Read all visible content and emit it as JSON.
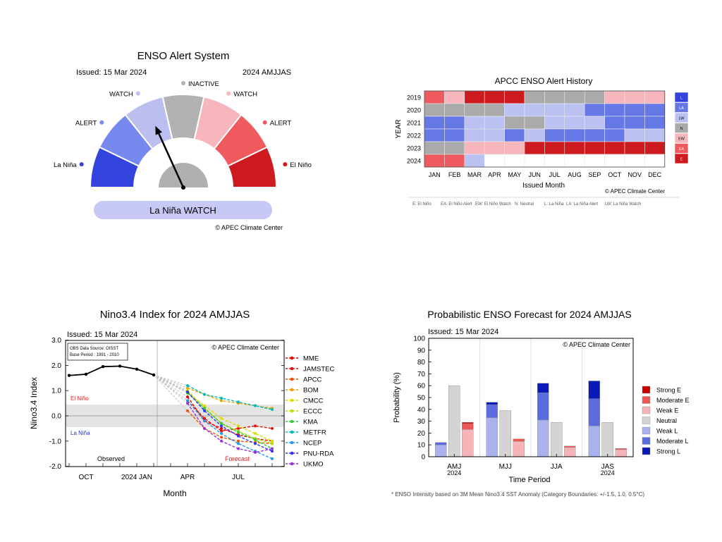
{
  "colors": {
    "la_nina": "#3344dd",
    "alert_l": "#7788ee",
    "watch_l": "#bbbff0",
    "inactive": "#b2b2b2",
    "watch_e": "#f7b6bc",
    "alert_e": "#ee5a5e",
    "el_nino": "#cc1a1f",
    "strong_e": "#c80000",
    "moderate_e": "#ee5555",
    "weak_e": "#f6b4b8",
    "neutral": "#d4d4d4",
    "weak_l": "#aab2ee",
    "moderate_l": "#5a6ce0",
    "strong_l": "#0a1ab8",
    "banner": "#c8c8f4"
  },
  "gauge": {
    "title": "ENSO Alert System",
    "issued": "Issued: 15 Mar 2024",
    "season": "2024 AMJJAS",
    "status": "La Niña WATCH",
    "credit": "© APEC Climate Center",
    "labels": [
      "La Niña",
      "ALERT",
      "WATCH",
      "INACTIVE",
      "WATCH",
      "ALERT",
      "El Niño"
    ],
    "needle_sector": 2
  },
  "history": {
    "title": "APCC ENSO Alert History",
    "ylabel": "YEAR",
    "xlabel": "Issued Month",
    "credit": "© APEC Climate Center",
    "years": [
      "2019",
      "2020",
      "2021",
      "2022",
      "2023",
      "2024"
    ],
    "months": [
      "JAN",
      "FEB",
      "MAR",
      "APR",
      "MAY",
      "JUN",
      "JUL",
      "AUG",
      "SEP",
      "OCT",
      "NOV",
      "DEC"
    ],
    "grid": [
      [
        "EA",
        "EW",
        "E",
        "E",
        "E",
        "N",
        "N",
        "N",
        "N",
        "EW",
        "EW",
        "EW"
      ],
      [
        "N",
        "N",
        "N",
        "N",
        "LW",
        "LW",
        "LW",
        "LW",
        "LA",
        "LA",
        "LA",
        "LA"
      ],
      [
        "LA",
        "LA",
        "LW",
        "LW",
        "N",
        "N",
        "LW",
        "LW",
        "LW",
        "LA",
        "LA",
        "LA"
      ],
      [
        "LA",
        "LA",
        "LW",
        "LW",
        "LA",
        "LW",
        "LA",
        "LA",
        "LA",
        "LA",
        "LW",
        "LW"
      ],
      [
        "N",
        "N",
        "EW",
        "EW",
        "EW",
        "E",
        "E",
        "E",
        "E",
        "E",
        "E",
        "E"
      ],
      [
        "EA",
        "EA",
        "LW",
        "",
        "",
        "",
        "",
        "",
        "",
        "",
        "",
        ""
      ]
    ],
    "legend": [
      {
        "code": "L",
        "color": "#3344dd"
      },
      {
        "code": "LA",
        "color": "#6677e6"
      },
      {
        "code": "LW",
        "color": "#bbc2f2"
      },
      {
        "code": "N",
        "color": "#aaaaaa"
      },
      {
        "code": "EW",
        "color": "#f7b6bc"
      },
      {
        "code": "EA",
        "color": "#ee5a5e"
      },
      {
        "code": "E",
        "color": "#cc1a1f"
      }
    ],
    "footnote": [
      "E: El Niño",
      "EA: El Niño Alert",
      "EW: El Niño Watch",
      "N: Neutral",
      "L: La Niña",
      "LA: La Niña Alert",
      "LW: La Niña Watch"
    ]
  },
  "nino": {
    "title": "Nino3.4 Index for 2024 AMJJAS",
    "issued": "Issued: 15 Mar 2024",
    "obs_note": [
      "OBS Data Source: OISST",
      "Base Period : 1991 - 2010"
    ],
    "credit": "© APEC Climate Center",
    "ylabel": "Nino3.4 Index",
    "xlabel": "Month",
    "el_nino_label": "El Niño",
    "la_nina_label": "La Niña",
    "observed_label": "Observed",
    "forecast_label": "Forecast",
    "yticks": [
      "3.0",
      "2.0",
      "1.0",
      "0.0",
      "-1.0",
      "-2.0"
    ],
    "xticks": [
      {
        "pos": 1,
        "label": "OCT"
      },
      {
        "pos": 4,
        "label": "2024 JAN"
      },
      {
        "pos": 7,
        "label": "APR"
      },
      {
        "pos": 10,
        "label": "JUL"
      }
    ]
  },
  "chart_data": [
    {
      "type": "line",
      "title": "Nino3.4 Index for 2024 AMJJAS",
      "xlabel": "Month",
      "ylabel": "Nino3.4 Index",
      "ylim": [
        -2.0,
        3.0
      ],
      "observed": {
        "x": [
          0,
          1,
          2,
          3,
          4,
          5
        ],
        "y": [
          1.6,
          1.65,
          1.95,
          1.97,
          1.85,
          1.62
        ]
      },
      "series": [
        {
          "name": "MME",
          "color": "#e60000",
          "values": [
            0.75,
            -0.2,
            -0.5,
            -0.75,
            -0.9,
            -1.0
          ]
        },
        {
          "name": "JAMSTEC",
          "color": "#dd1111",
          "values": [
            0.6,
            -0.1,
            -0.6,
            -0.5,
            -0.4,
            -0.5
          ]
        },
        {
          "name": "APCC",
          "color": "#ee5500",
          "values": [
            0.2,
            -0.5,
            -0.85,
            -1.0,
            -1.05,
            -1.1
          ]
        },
        {
          "name": "BOM",
          "color": "#f0a000",
          "values": [
            1.1,
            0.85,
            0.6,
            0.5,
            0.4,
            0.3
          ]
        },
        {
          "name": "CMCC",
          "color": "#dddd00",
          "values": [
            0.9,
            0.4,
            -0.1,
            -0.4,
            -0.7,
            -1.0
          ]
        },
        {
          "name": "ECCC",
          "color": "#bbdd00",
          "values": [
            1.0,
            0.3,
            -0.3,
            -0.6,
            -0.9,
            -1.1
          ]
        },
        {
          "name": "KMA",
          "color": "#33cc33",
          "values": [
            0.9,
            0.3,
            -0.3,
            -0.65,
            -0.95,
            -1.3
          ]
        },
        {
          "name": "METFR",
          "color": "#00bbbb",
          "values": [
            1.2,
            0.85,
            0.7,
            0.55,
            0.4,
            0.25
          ]
        },
        {
          "name": "NCEP",
          "color": "#2299ee",
          "values": [
            0.6,
            -0.2,
            -0.7,
            -1.1,
            -1.4,
            -1.7
          ]
        },
        {
          "name": "PNU-RDA",
          "color": "#3333ee",
          "values": [
            0.95,
            0.2,
            -0.4,
            -0.8,
            -1.1,
            -1.4
          ]
        },
        {
          "name": "UKMO",
          "color": "#9933dd",
          "values": [
            0.5,
            -0.5,
            -1.0,
            -1.3,
            -1.45,
            -1.3
          ]
        }
      ],
      "forecast_x": [
        7,
        8,
        9,
        10,
        11,
        12
      ]
    },
    {
      "type": "bar",
      "title": "Probabilistic ENSO Forecast for 2024 AMJJAS",
      "xlabel": "Time Period",
      "ylabel": "Probability (%)",
      "ylim": [
        0,
        100
      ],
      "categories": [
        [
          "AMJ",
          "2024"
        ],
        [
          "MJJ"
        ],
        [
          "JJA"
        ],
        [
          "JAS",
          "2024"
        ]
      ],
      "la_nina": [
        {
          "weak": 10,
          "moderate": 2,
          "strong": 0
        },
        {
          "weak": 33,
          "moderate": 11,
          "strong": 2
        },
        {
          "weak": 31,
          "moderate": 23,
          "strong": 8
        },
        {
          "weak": 26,
          "moderate": 23,
          "strong": 15
        }
      ],
      "neutral": [
        60,
        39,
        29,
        29
      ],
      "el_nino": [
        {
          "weak": 23,
          "moderate": 5,
          "strong": 1
        },
        {
          "weak": 13,
          "moderate": 2,
          "strong": 0
        },
        {
          "weak": 8,
          "moderate": 1,
          "strong": 0
        },
        {
          "weak": 6,
          "moderate": 1,
          "strong": 0
        }
      ],
      "legend": [
        "Strong E",
        "Moderate E",
        "Weak E",
        "Neutral",
        "Weak L",
        "Moderate L",
        "Strong L"
      ],
      "yticks": [
        "0",
        "10",
        "20",
        "30",
        "40",
        "50",
        "60",
        "70",
        "80",
        "90",
        "100"
      ],
      "issued": "Issued: 15 Mar 2024",
      "credit": "© APEC Climate Center",
      "footnote": "* ENSO Intensity based on 3M Mean Nino3.4 SST Anomaly (Category Boundaries: +/-1.5, 1.0, 0.5°C)"
    }
  ]
}
